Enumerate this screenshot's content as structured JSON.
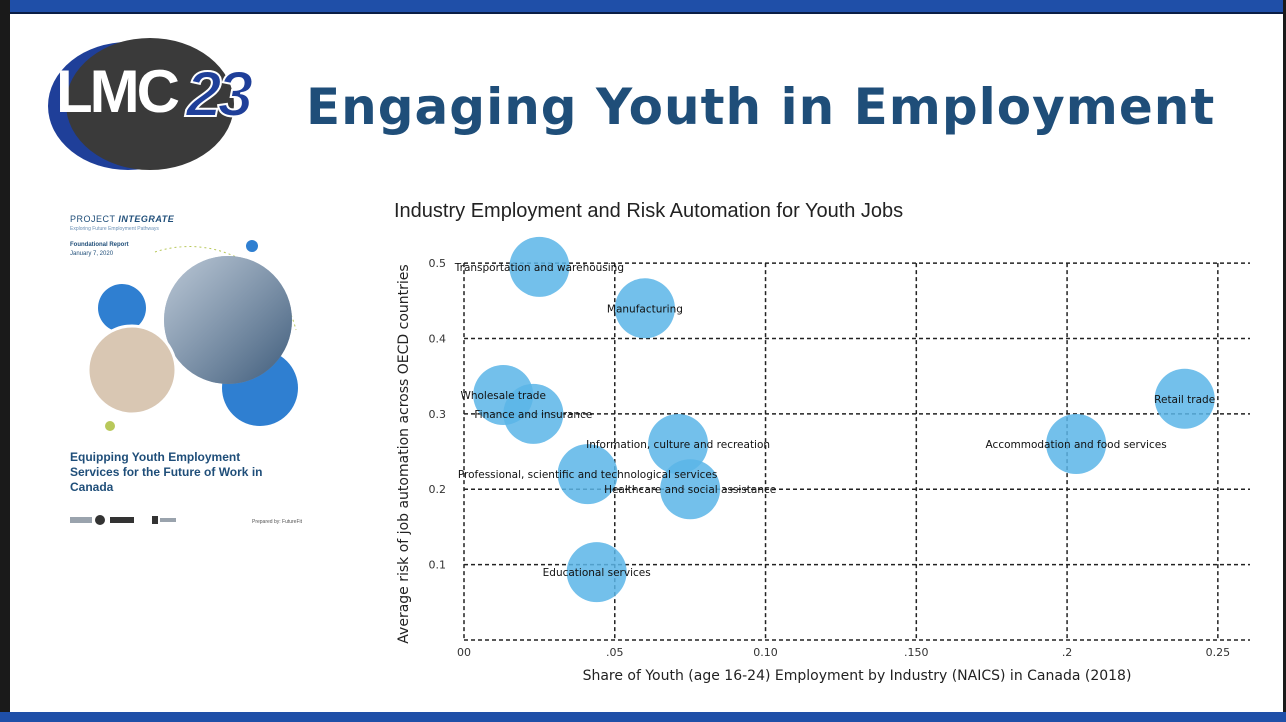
{
  "header": {
    "logo_text": "LMC",
    "logo_number": "23",
    "title": "Engaging Youth in Employment"
  },
  "report_cover": {
    "project_prefix": "PROJECT",
    "project_name": "INTEGRATE",
    "subtitle": "Exploring Future Employment Pathways",
    "report_type": "Foundational Report",
    "date": "January 7, 2020",
    "heading": "Equipping Youth Employment Services for the Future of Work in Canada",
    "prepared_by": "Prepared by: FutureFit"
  },
  "colors": {
    "brand_blue": "#1f4fa8",
    "title_blue": "#1f4e79",
    "bubble": "#5bb5e8"
  },
  "chart_data": {
    "type": "scatter",
    "title": "Industry Employment and Risk Automation for Youth Jobs",
    "xlabel": "Share of Youth (age 16-24) Employment by Industry (NAICS) in Canada (2018)",
    "ylabel": "Average risk of job automation across OECD countries",
    "xlim": [
      0,
      0.26
    ],
    "ylim": [
      0,
      0.52
    ],
    "x_ticks": [
      {
        "value": 0,
        "label": "00"
      },
      {
        "value": 0.05,
        "label": ".05"
      },
      {
        "value": 0.1,
        "label": "0.10"
      },
      {
        "value": 0.15,
        "label": ".150"
      },
      {
        "value": 0.2,
        "label": ".2"
      },
      {
        "value": 0.25,
        "label": "0.25"
      }
    ],
    "y_ticks": [
      {
        "value": 0.1,
        "label": "0.1"
      },
      {
        "value": 0.2,
        "label": "0.2"
      },
      {
        "value": 0.3,
        "label": "0.3"
      },
      {
        "value": 0.4,
        "label": "0.4"
      },
      {
        "value": 0.5,
        "label": "0.5"
      }
    ],
    "grid": true,
    "points": [
      {
        "label": "Transportation and warehousing",
        "x": 0.025,
        "y": 0.495
      },
      {
        "label": "Manufacturing",
        "x": 0.06,
        "y": 0.44
      },
      {
        "label": "Wholesale trade",
        "x": 0.013,
        "y": 0.325
      },
      {
        "label": "Finance and insurance",
        "x": 0.023,
        "y": 0.3
      },
      {
        "label": "Information, culture and recreation",
        "x": 0.071,
        "y": 0.26
      },
      {
        "label": "Professional, scientific and technological services",
        "x": 0.041,
        "y": 0.22
      },
      {
        "label": "Healthcare and social assistance",
        "x": 0.075,
        "y": 0.2
      },
      {
        "label": "Educational services",
        "x": 0.044,
        "y": 0.09
      },
      {
        "label": "Accommodation and food services",
        "x": 0.203,
        "y": 0.26
      },
      {
        "label": "Retail trade",
        "x": 0.239,
        "y": 0.32
      }
    ]
  }
}
